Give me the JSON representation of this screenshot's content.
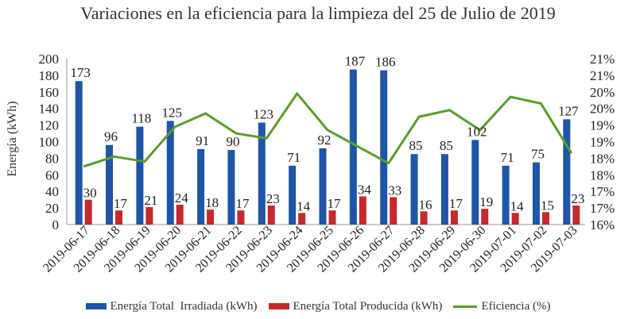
{
  "chart_data": {
    "type": "bar",
    "title": "Variaciones en la eficiencia para la limpieza del 25 de Julio de 2019",
    "ylabel": "Energía (kWh)",
    "ylim": [
      0,
      200
    ],
    "yticks": [
      "0",
      "20",
      "40",
      "60",
      "80",
      "100",
      "120",
      "140",
      "160",
      "180",
      "200"
    ],
    "y2lim": [
      16,
      21
    ],
    "y2ticks": [
      "16%",
      "17%",
      "17%",
      "18%",
      "18%",
      "19%",
      "19%",
      "20%",
      "20%",
      "21%",
      "21%"
    ],
    "grid": false,
    "legend_position": "bottom",
    "categories": [
      "2019-06-17",
      "2019-06-18",
      "2019-06-19",
      "2019-06-20",
      "2019-06-21",
      "2019-06-22",
      "2019-06-23",
      "2019-06-24",
      "2019-06-25",
      "2019-06-26",
      "2019-06-27",
      "2019-06-28",
      "2019-06-29",
      "2019-06-30",
      "2019-07-01",
      "2019-07-02",
      "2019-07-03"
    ],
    "series": [
      {
        "name": "Energía Total  Irradiada (kWh)",
        "kind": "bar",
        "axis": "left",
        "color": "#1f55a8",
        "values": [
          173,
          96,
          118,
          125,
          91,
          90,
          123,
          71,
          92,
          187,
          186,
          85,
          85,
          102,
          71,
          75,
          127
        ]
      },
      {
        "name": "Energía Total Producida (kWh)",
        "kind": "bar",
        "axis": "left",
        "color": "#c8282d",
        "values": [
          30,
          17,
          21,
          24,
          18,
          17,
          23,
          14,
          17,
          34,
          33,
          16,
          17,
          19,
          14,
          15,
          23
        ]
      },
      {
        "name": "Eficiencia (%)",
        "kind": "line",
        "axis": "right",
        "color": "#5a9e2a",
        "values": [
          17.75,
          18.05,
          17.9,
          18.95,
          19.35,
          18.75,
          18.6,
          19.95,
          18.85,
          18.35,
          17.85,
          19.25,
          19.45,
          18.85,
          19.85,
          19.65,
          18.15
        ]
      }
    ]
  }
}
